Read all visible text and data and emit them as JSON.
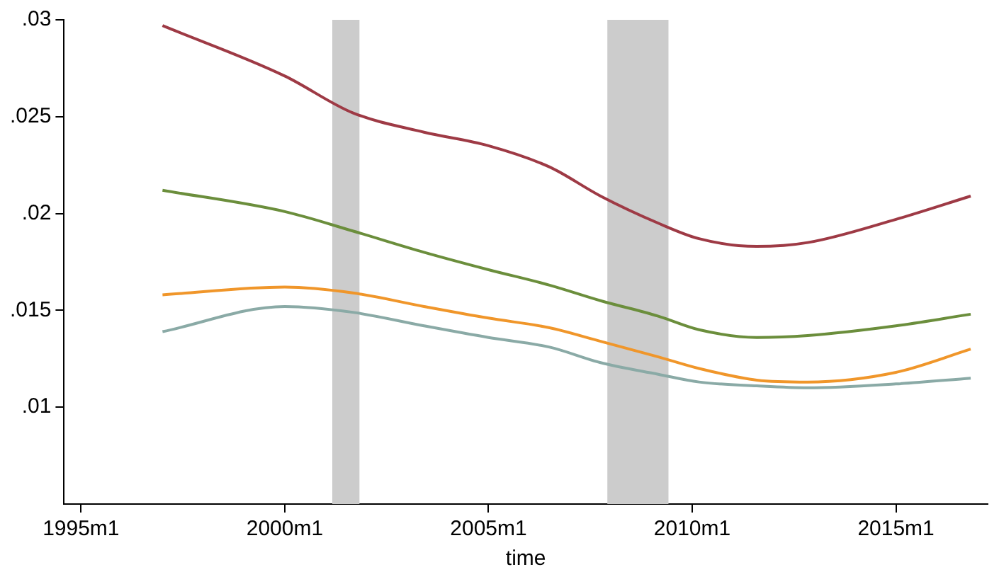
{
  "chart_data": {
    "type": "line",
    "xlabel": "time",
    "xlim": [
      "1994-08",
      "2017-04"
    ],
    "ylim": [
      0.005,
      0.03
    ],
    "xticks": [
      {
        "value": "1995-01",
        "label": "1995m1"
      },
      {
        "value": "2000-01",
        "label": "2000m1"
      },
      {
        "value": "2005-01",
        "label": "2005m1"
      },
      {
        "value": "2010-01",
        "label": "2010m1"
      },
      {
        "value": "2015-01",
        "label": "2015m1"
      }
    ],
    "yticks": [
      {
        "value": 0.01,
        "label": ".01"
      },
      {
        "value": 0.015,
        "label": ".015"
      },
      {
        "value": 0.02,
        "label": ".02"
      },
      {
        "value": 0.025,
        "label": ".025"
      },
      {
        "value": 0.03,
        "label": ".03"
      }
    ],
    "x": [
      "1997-01",
      "2000-01",
      "2001-09",
      "2003-06",
      "2005-01",
      "2006-07",
      "2007-10",
      "2009-03",
      "2010-03",
      "2011-08",
      "2012-11",
      "2015-01",
      "2016-11"
    ],
    "series": [
      {
        "color": "#9e3a45",
        "values": [
          0.0297,
          0.0271,
          0.0252,
          0.0242,
          0.0235,
          0.0224,
          0.0209,
          0.0195,
          0.0187,
          0.0183,
          0.0185,
          0.0197,
          0.0209
        ]
      },
      {
        "color": "#6b8e3c",
        "values": [
          0.0212,
          0.0201,
          0.0191,
          0.018,
          0.0171,
          0.0163,
          0.0155,
          0.0147,
          0.014,
          0.0136,
          0.0137,
          0.0142,
          0.0148
        ]
      },
      {
        "color": "#f0962a",
        "values": [
          0.0158,
          0.0162,
          0.0159,
          0.0152,
          0.0146,
          0.0141,
          0.0134,
          0.0126,
          0.012,
          0.0114,
          0.0113,
          0.0118,
          0.013
        ]
      },
      {
        "color": "#8aaaa6",
        "values": [
          0.0139,
          0.0152,
          0.0149,
          0.0142,
          0.0136,
          0.0131,
          0.0123,
          0.0117,
          0.0113,
          0.0111,
          0.011,
          0.0112,
          0.0115
        ]
      }
    ],
    "bands": [
      {
        "axis": "x",
        "from": "2001-03",
        "to": "2001-11",
        "color": "#cccccc"
      },
      {
        "axis": "x",
        "from": "2007-12",
        "to": "2009-06",
        "color": "#cccccc"
      }
    ],
    "grid": false,
    "legend": false,
    "marker": "none",
    "line_style": "solid"
  }
}
